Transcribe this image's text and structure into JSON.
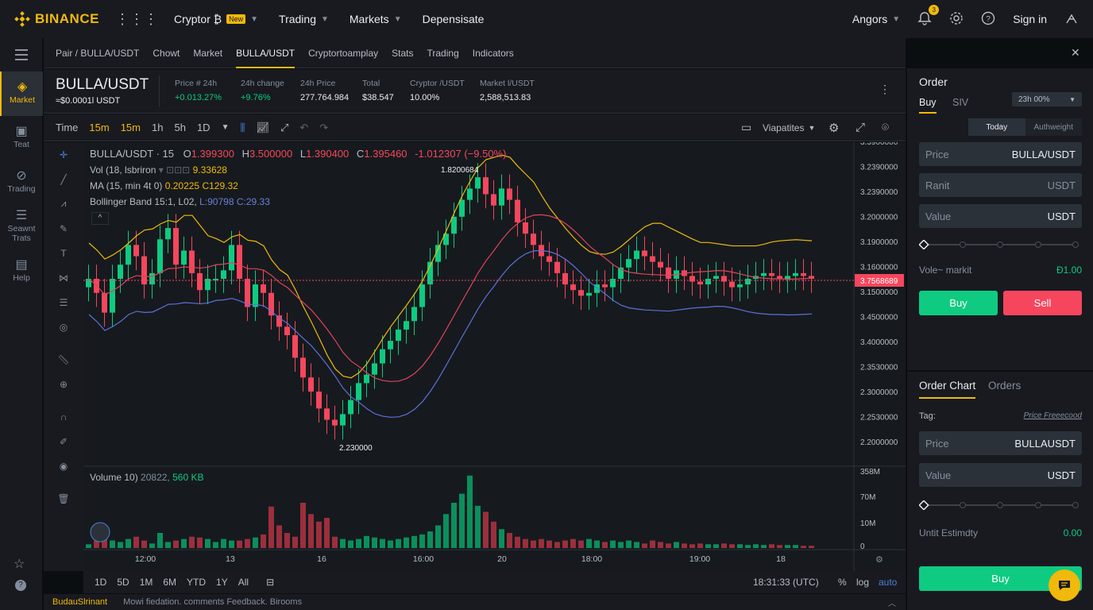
{
  "topnav": {
    "brand": "BINANCE",
    "items": [
      {
        "label": "Cryptor ₿",
        "badge": "New",
        "caret": true
      },
      {
        "label": "Trading",
        "caret": true
      },
      {
        "label": "Markets",
        "caret": true
      },
      {
        "label": "Depensisate",
        "caret": false
      }
    ],
    "language": "Angors",
    "notif_count": "3",
    "signin": "Sign in"
  },
  "leftbar": {
    "items": [
      {
        "label": "Market",
        "icon": "market-icon"
      },
      {
        "label": "Teat",
        "icon": "book-icon"
      },
      {
        "label": "Trading",
        "icon": "trading-icon"
      },
      {
        "label": "Seawnt Trats",
        "icon": "list-icon"
      },
      {
        "label": "Help",
        "icon": "help-icon"
      }
    ]
  },
  "tabs": [
    "Pair / BULLA/USDT",
    "Chowt",
    "Market",
    "BULLA/USDT",
    "Cryptortoamplay",
    "Stats",
    "Trading",
    "Indicators"
  ],
  "ticker": {
    "pair": "BULLA/USDT",
    "sub": "≈$0.0001l USDT",
    "stats": [
      {
        "label": "Price # 24h",
        "value": "+0.013.27%",
        "color": "green"
      },
      {
        "label": "24h change",
        "value": "+9.76%",
        "color": "green"
      },
      {
        "label": "24h Price",
        "value": "277.764.984",
        "color": "white"
      },
      {
        "label": "Total",
        "value": "$38.547",
        "color": "white"
      },
      {
        "label": "Cryptor /USDT",
        "value": "10.00%",
        "color": "white"
      },
      {
        "label": "Market l/USDT",
        "value": "2,588,513.83",
        "color": "white"
      }
    ]
  },
  "toolbar": {
    "time_label": "Time",
    "intervals": [
      "15m",
      "15m",
      "1h",
      "5h",
      "1D"
    ],
    "active_intervals": [
      0,
      1
    ],
    "template_label": "Viapatites"
  },
  "legend": {
    "title": "BULLA/USDT · 15",
    "o": "1.399300",
    "h": "3.500000",
    "l": "1.390400",
    "c": "1.395460",
    "chg": "-1.012307 (−9.50%)",
    "vol_label": "Vol (18, lsbriron",
    "vol_value": "9.33628",
    "ma_label": "MA (15, min 4t 0)",
    "ma_v1": "0.20225",
    "ma_v2": "C129.32",
    "bb_label": "Bollinger Band 15:1, L02,",
    "bb_v1": "L:90798",
    "bb_v2": "C:29.33",
    "volume_label": "Volume 10)",
    "volume_v1": "20822,",
    "volume_v2": "560 KB"
  },
  "chart_data": {
    "type": "candlestick",
    "price_axis_labels": [
      "3.3900000",
      "3.2390000",
      "3.2390000",
      "3.2000000",
      "3.1900000",
      "3.1600000",
      "3.1500000",
      "3.4500000",
      "3.4000000",
      "2.3530000",
      "2.3000000",
      "2.2530000",
      "2.2000000"
    ],
    "current_price": "3.7568689",
    "high_marker": "1.8200684",
    "low_marker": "2.230000",
    "time_labels": [
      "12:00",
      "13",
      "16",
      "16:00",
      "20",
      "18:00",
      "19:00",
      "18"
    ],
    "volume_axis_labels": [
      "358M",
      "70M",
      "10M",
      "0"
    ],
    "candles_close_level": [
      0.6,
      0.55,
      0.48,
      0.6,
      0.65,
      0.72,
      0.68,
      0.58,
      0.62,
      0.74,
      0.78,
      0.65,
      0.7,
      0.62,
      0.56,
      0.6,
      0.6,
      0.63,
      0.72,
      0.6,
      0.5,
      0.58,
      0.55,
      0.47,
      0.43,
      0.4,
      0.32,
      0.25,
      0.2,
      0.14,
      0.1,
      0.08,
      0.12,
      0.17,
      0.23,
      0.26,
      0.3,
      0.35,
      0.38,
      0.42,
      0.45,
      0.5,
      0.58,
      0.66,
      0.72,
      0.76,
      0.82,
      0.88,
      0.92,
      0.96,
      0.9,
      0.86,
      0.92,
      0.88,
      0.8,
      0.76,
      0.72,
      0.68,
      0.66,
      0.62,
      0.58,
      0.56,
      0.54,
      0.55,
      0.58,
      0.57,
      0.6,
      0.64,
      0.67,
      0.7,
      0.68,
      0.66,
      0.64,
      0.6,
      0.63,
      0.61,
      0.59,
      0.58,
      0.6,
      0.61,
      0.59,
      0.57,
      0.58,
      0.6,
      0.61,
      0.62,
      0.61,
      0.6,
      0.61,
      0.62,
      0.61,
      0.6
    ],
    "volumes": [
      0.05,
      0.1,
      0.3,
      0.1,
      0.08,
      0.12,
      0.15,
      0.1,
      0.06,
      0.2,
      0.08,
      0.1,
      0.12,
      0.15,
      0.14,
      0.12,
      0.08,
      0.12,
      0.1,
      0.1,
      0.12,
      0.14,
      0.18,
      0.55,
      0.3,
      0.2,
      0.15,
      0.6,
      0.45,
      0.35,
      0.4,
      0.15,
      0.12,
      0.1,
      0.12,
      0.16,
      0.14,
      0.12,
      0.1,
      0.12,
      0.14,
      0.16,
      0.18,
      0.22,
      0.3,
      0.45,
      0.6,
      0.72,
      0.96,
      0.56,
      0.48,
      0.35,
      0.25,
      0.2,
      0.15,
      0.12,
      0.1,
      0.12,
      0.1,
      0.08,
      0.1,
      0.12,
      0.1,
      0.12,
      0.1,
      0.08,
      0.1,
      0.08,
      0.1,
      0.08,
      0.06,
      0.1,
      0.08,
      0.06,
      0.08,
      0.06,
      0.05,
      0.06,
      0.05,
      0.05,
      0.06,
      0.05,
      0.05,
      0.04,
      0.05,
      0.04,
      0.05,
      0.04,
      0.04,
      0.04,
      0.03,
      0.03
    ]
  },
  "rangebar": {
    "ranges": [
      "1D",
      "5D",
      "1M",
      "6M",
      "YTD",
      "1Y",
      "All"
    ],
    "clock": "18:31:33 (UTC)",
    "pct": "%",
    "log": "log",
    "auto": "auto"
  },
  "footer": {
    "brand": "BudauSlrinant",
    "links": "Mowi fiedation. comments  Feedback. Birooms"
  },
  "order": {
    "title": "Order",
    "tab_buy": "Buy",
    "tab_siv": "SIV",
    "select": "23h 00%",
    "toggle_today": "Today",
    "toggle_auth": "Authweight",
    "price_label": "Price",
    "price_unit": "BULLA/USDT",
    "ranit_label": "Ranit",
    "ranit_unit": "USDT",
    "value_label": "Value",
    "value_unit": "USDT",
    "vole_label": "Vole~ markit",
    "vole_value": "Ɖ1.00",
    "buy": "Buy",
    "sell": "Sell"
  },
  "orderchart": {
    "tab1": "Order Chart",
    "tab2": "Orders",
    "tag_label": "Tag:",
    "tag_link": "Price Freeecood",
    "price_label": "Price",
    "price_unit": "BULLAUSDT",
    "value_label": "Value",
    "value_unit": "USDT",
    "unit_label": "Untit Estimdty",
    "unit_value": "0.00",
    "buy": "Buy"
  },
  "colors": {
    "accent": "#f0b90b",
    "up": "#0ecb81",
    "down": "#f6465d",
    "bg": "#161a1e"
  }
}
